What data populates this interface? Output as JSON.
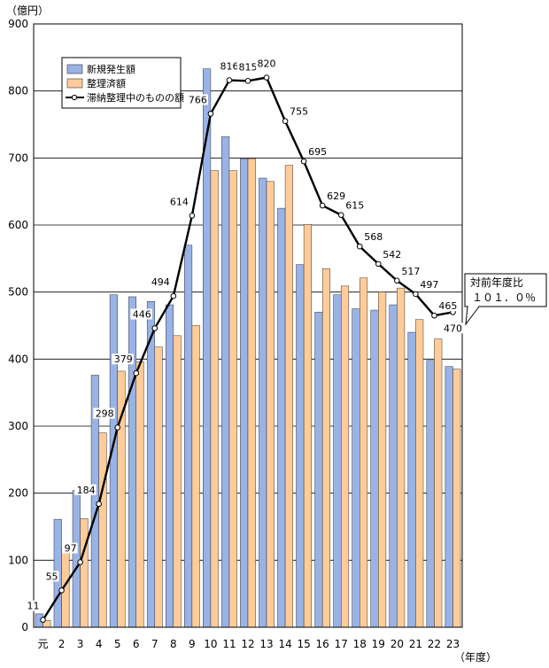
{
  "chart_data": {
    "type": "bar",
    "y_unit": "（億円）",
    "x_unit": "（年度）",
    "categories": [
      "元",
      "2",
      "3",
      "4",
      "5",
      "6",
      "7",
      "8",
      "9",
      "10",
      "11",
      "12",
      "13",
      "14",
      "15",
      "16",
      "17",
      "18",
      "19",
      "20",
      "21",
      "22",
      "23"
    ],
    "ylim": [
      0,
      900
    ],
    "yticks": [
      0,
      100,
      200,
      300,
      400,
      500,
      600,
      700,
      800,
      900
    ],
    "grid": true,
    "legend_position": "top-left",
    "series": [
      {
        "name": "新規発生額",
        "type": "bar",
        "color": "#99b3e6",
        "values": [
          20,
          161,
          204,
          376,
          496,
          493,
          486,
          481,
          570,
          833,
          732,
          699,
          670,
          625,
          541,
          470,
          496,
          475,
          473,
          481,
          440,
          398,
          389
        ]
      },
      {
        "name": "整理済額",
        "type": "bar",
        "color": "#ffcc99",
        "values": [
          10,
          120,
          162,
          290,
          382,
          396,
          418,
          435,
          450,
          681,
          681,
          699,
          665,
          689,
          601,
          535,
          509,
          521,
          500,
          506,
          459,
          430,
          385
        ]
      },
      {
        "name": "滞納整理中のものの額",
        "type": "line",
        "color": "#000000",
        "values": [
          11,
          55,
          97,
          184,
          298,
          379,
          446,
          494,
          614,
          766,
          816,
          815,
          820,
          755,
          695,
          629,
          615,
          568,
          542,
          517,
          497,
          465,
          470
        ],
        "labels": [
          "11",
          "55",
          "97",
          "184",
          "298",
          "379",
          "446",
          "494",
          "614",
          "766",
          "816",
          "815",
          "820",
          "755",
          "695",
          "629",
          "615",
          "568",
          "542",
          "517",
          "497",
          "465",
          "470"
        ]
      }
    ],
    "annotation": {
      "line1": "対前年度比",
      "line2": "１０１．０％"
    }
  }
}
